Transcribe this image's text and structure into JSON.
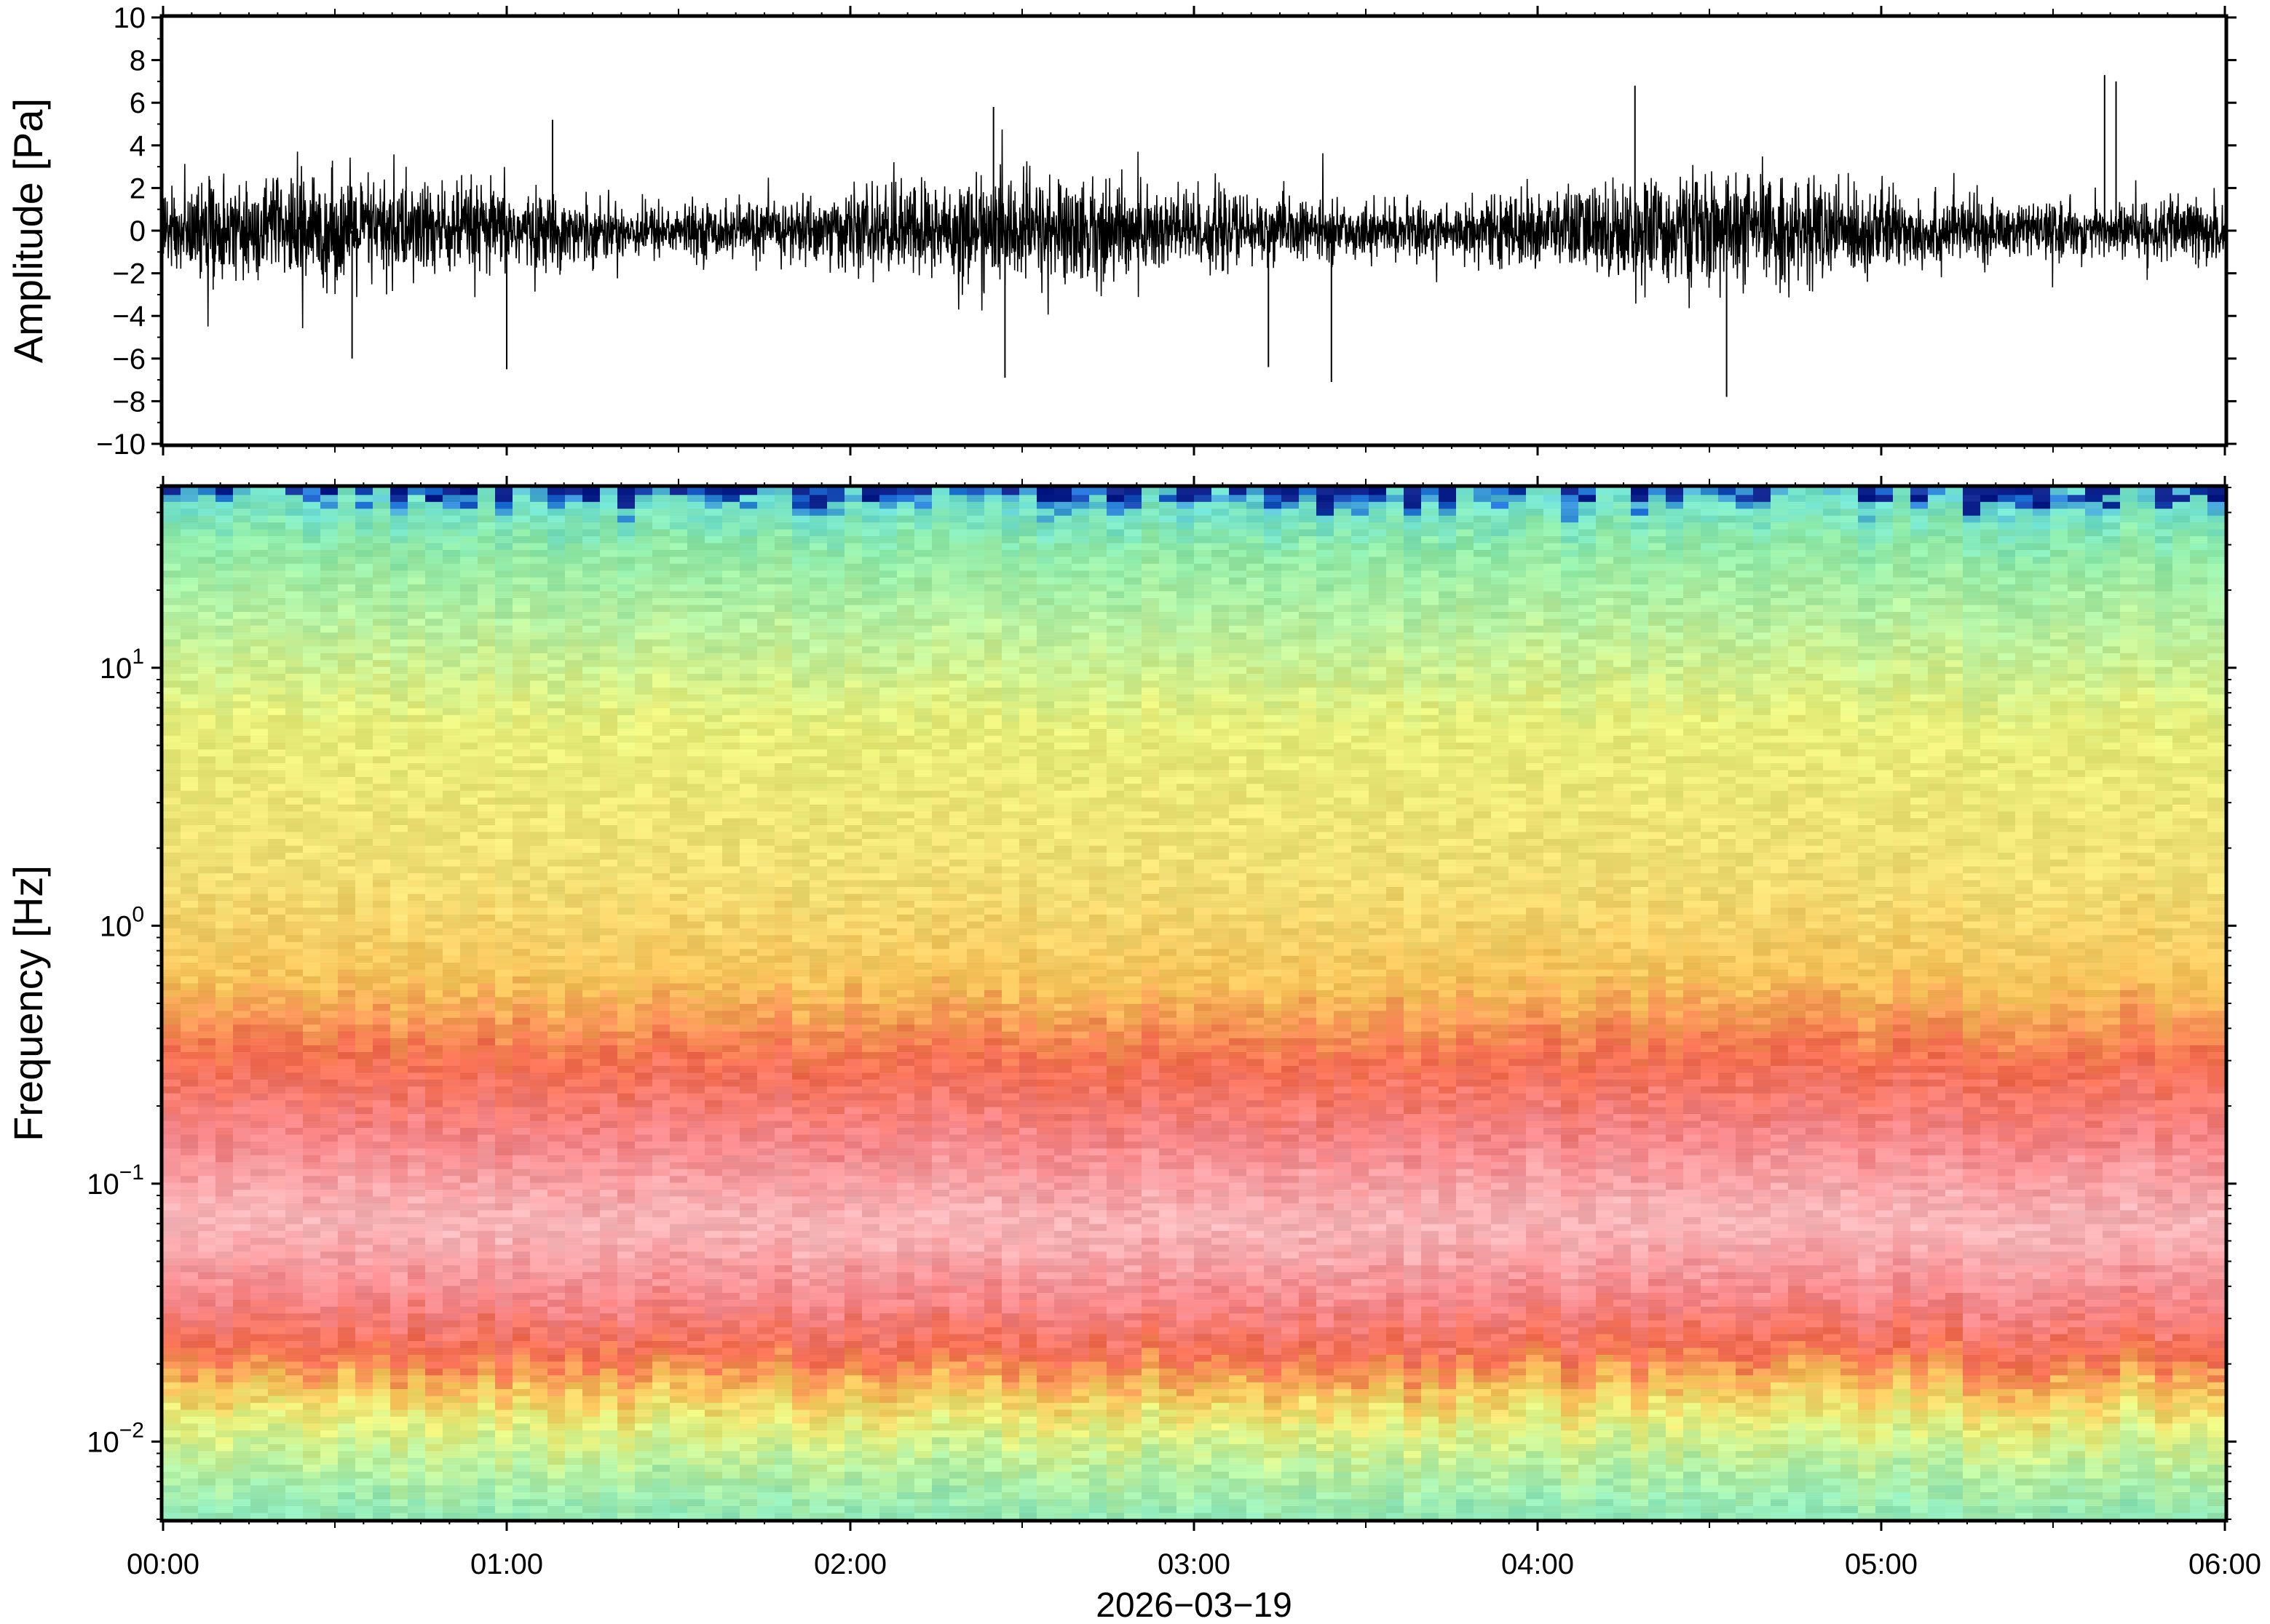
{
  "chart_data": [
    {
      "type": "line",
      "panel": "waveform",
      "ylabel": "Amplitude [Pa]",
      "ylim": [
        -10,
        10
      ],
      "yticks": [
        -10,
        -8,
        -6,
        -4,
        -2,
        0,
        2,
        4,
        6,
        8,
        10
      ],
      "ytick_labels": [
        "−10",
        "−8",
        "−6",
        "−4",
        "−2",
        "0",
        "2",
        "4",
        "6",
        "8",
        "10"
      ],
      "xlim": [
        "00:00",
        "06:00"
      ],
      "line_color": "#000000",
      "noise_std": 1.1,
      "peaks": [
        {
          "time": "00:33",
          "value": -6.0
        },
        {
          "time": "01:00",
          "value": -6.5
        },
        {
          "time": "01:08",
          "value": 5.2
        },
        {
          "time": "02:25",
          "value": 5.8
        },
        {
          "time": "02:27",
          "value": -6.9
        },
        {
          "time": "03:13",
          "value": -6.4
        },
        {
          "time": "03:24",
          "value": -7.1
        },
        {
          "time": "04:17",
          "value": 6.8
        },
        {
          "time": "04:33",
          "value": -7.8
        },
        {
          "time": "05:39",
          "value": 7.3
        },
        {
          "time": "05:41",
          "value": 7.0
        }
      ]
    },
    {
      "type": "heatmap",
      "panel": "spectrogram",
      "ylabel": "Frequency [Hz]",
      "yscale": "log",
      "ylim": [
        0.005,
        50
      ],
      "yticks": [
        {
          "base": "10",
          "exp": "−2",
          "value": 0.01
        },
        {
          "base": "10",
          "exp": "−1",
          "value": 0.1
        },
        {
          "base": "10",
          "exp": "0",
          "value": 1
        },
        {
          "base": "10",
          "exp": "1",
          "value": 10
        }
      ],
      "xlim": [
        "00:00",
        "06:00"
      ],
      "colormap": [
        "#0b1f8a",
        "#1e6fd9",
        "#4fd9e6",
        "#9ef0a6",
        "#e8ef7a",
        "#f7c35a",
        "#f46d50",
        "#f9b8bb",
        "#fde0e2"
      ],
      "description_bands": [
        {
          "freq_range": [
            40,
            50
          ],
          "colour": "#4fd9e6"
        },
        {
          "freq_range": [
            10,
            40
          ],
          "colour": "#8eeaa8"
        },
        {
          "freq_range": [
            1,
            10
          ],
          "colour": "#e8ef7a"
        },
        {
          "freq_range": [
            0.5,
            1
          ],
          "colour": "#f7c35a"
        },
        {
          "freq_range": [
            0.15,
            0.5
          ],
          "colour": "#f46d50"
        },
        {
          "freq_range": [
            0.03,
            0.15
          ],
          "colour": "#f9b8bb"
        },
        {
          "freq_range": [
            0.015,
            0.03
          ],
          "colour": "#f46d50"
        },
        {
          "freq_range": [
            0.005,
            0.015
          ],
          "colour": "#b7f0a0"
        }
      ]
    }
  ],
  "xaxis": {
    "tick_labels": [
      "00:00",
      "01:00",
      "02:00",
      "03:00",
      "04:00",
      "05:00",
      "06:00"
    ],
    "date_label": "2026−03−19"
  }
}
